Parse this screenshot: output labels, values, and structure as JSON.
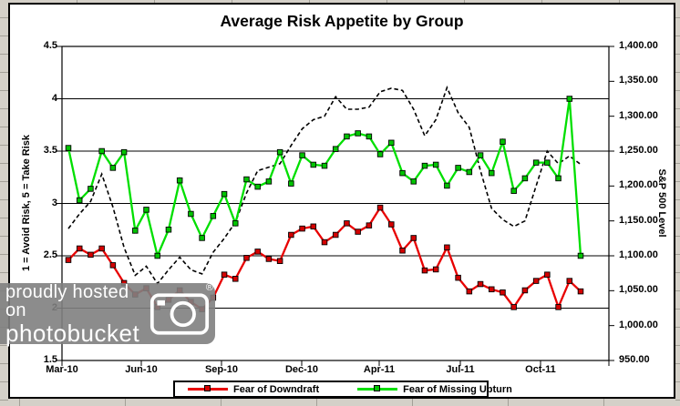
{
  "chart_data": {
    "type": "line",
    "title": "Average Risk Appetite by Group",
    "x_tick_labels": [
      "Mar-10",
      "Jun-10",
      "Sep-10",
      "Dec-10",
      "Apr-11",
      "Jul-11",
      "Oct-11"
    ],
    "left_axis": {
      "title": "1 = Avoid Risk, 5 = Take Risk",
      "min": 1.5,
      "max": 4.5,
      "tick_labels": [
        "4.5",
        "4",
        "3.5",
        "3",
        "2.5",
        "2",
        "1.5"
      ]
    },
    "right_axis": {
      "title": "S&P 500 Level",
      "min": 950,
      "max": 1400,
      "tick_labels": [
        "1,400.00",
        "1,350.00",
        "1,300.00",
        "1,250.00",
        "1,200.00",
        "1,150.00",
        "1,100.00",
        "1,050.00",
        "1,000.00",
        "950.00"
      ]
    },
    "grid": "horizontal",
    "legend_position": "bottom",
    "series": [
      {
        "name": "Fear of Downdraft",
        "axis": "left",
        "style": "solid",
        "marker": "square",
        "line_color": "#e80000",
        "marker_color": "#d40000",
        "in_legend": true,
        "values": [
          2.46,
          2.57,
          2.51,
          2.57,
          2.41,
          2.24,
          2.13,
          2.19,
          2.01,
          2.08,
          2.17,
          2.06,
          1.99,
          2.1,
          2.32,
          2.28,
          2.48,
          2.54,
          2.47,
          2.45,
          2.7,
          2.76,
          2.78,
          2.63,
          2.7,
          2.81,
          2.73,
          2.79,
          2.96,
          2.8,
          2.55,
          2.67,
          2.36,
          2.37,
          2.58,
          2.29,
          2.16,
          2.23,
          2.18,
          2.15,
          2.01,
          2.17,
          2.26,
          2.32,
          2.01,
          2.26,
          2.16
        ]
      },
      {
        "name": "Fear of Missing Upturn",
        "axis": "left",
        "style": "solid",
        "marker": "square",
        "line_color": "#00df00",
        "marker_color": "#00c400",
        "in_legend": true,
        "values": [
          3.53,
          3.03,
          3.14,
          3.5,
          3.34,
          3.49,
          2.74,
          2.94,
          2.5,
          2.75,
          3.22,
          2.9,
          2.67,
          2.88,
          3.09,
          2.81,
          3.23,
          3.16,
          3.21,
          3.49,
          3.19,
          3.46,
          3.37,
          3.36,
          3.52,
          3.64,
          3.67,
          3.64,
          3.47,
          3.58,
          3.29,
          3.21,
          3.36,
          3.37,
          3.17,
          3.34,
          3.3,
          3.46,
          3.29,
          3.59,
          3.12,
          3.24,
          3.39,
          3.39,
          3.24,
          4.0,
          2.5
        ]
      },
      {
        "name": "S&P 500 Level",
        "axis": "right",
        "style": "dashed",
        "marker": "none",
        "line_color": "#000000",
        "in_legend": false,
        "values": [
          1139,
          1160,
          1178,
          1217,
          1170,
          1112,
          1072,
          1085,
          1060,
          1080,
          1098,
          1080,
          1074,
          1105,
          1125,
          1148,
          1190,
          1222,
          1227,
          1232,
          1258,
          1282,
          1295,
          1300,
          1328,
          1310,
          1310,
          1313,
          1335,
          1340,
          1337,
          1310,
          1272,
          1295,
          1341,
          1305,
          1284,
          1222,
          1168,
          1152,
          1142,
          1150,
          1200,
          1250,
          1232,
          1243,
          1231
        ]
      }
    ]
  },
  "legend": {
    "entries": [
      "Fear of Downdraft",
      "Fear of Missing Upturn"
    ]
  },
  "watermark": {
    "line1": "proudly hosted on",
    "line2": "photobucket",
    "registered_mark": "®"
  }
}
